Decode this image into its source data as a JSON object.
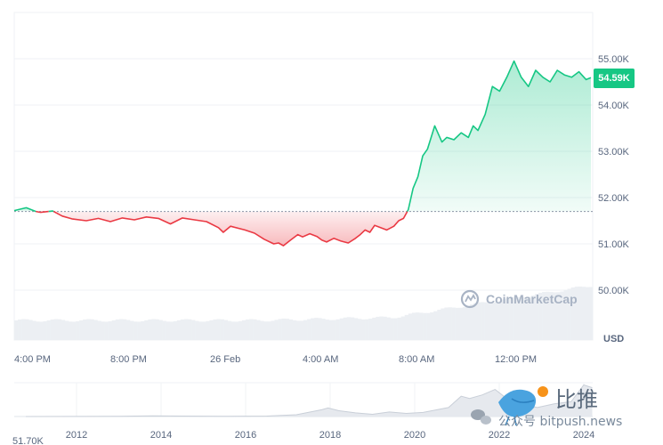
{
  "chart_data": [
    {
      "type": "area",
      "baseline_price": 51700,
      "current_price_label": "54.59K",
      "currency_label": "USD",
      "ylim": [
        49500,
        55600
      ],
      "y_ticks": [
        {
          "value": 55000,
          "label": "55.00K"
        },
        {
          "value": 54000,
          "label": "54.00K"
        },
        {
          "value": 53000,
          "label": "53.00K"
        },
        {
          "value": 52000,
          "label": "52.00K"
        },
        {
          "value": 51000,
          "label": "51.00K"
        },
        {
          "value": 50000,
          "label": "50.00K"
        }
      ],
      "x_ticks": [
        "4:00 PM",
        "8:00 PM",
        "26 Feb",
        "4:00 AM",
        "8:00 AM",
        "12:00 PM"
      ],
      "x_range_hours": [
        0,
        24
      ],
      "series": [
        {
          "x": [
            0,
            0.5,
            0.9,
            1.1,
            1.6,
            2.0,
            2.4,
            3.0,
            3.5,
            4.0,
            4.5,
            5.0,
            5.5,
            6.0,
            6.5,
            7.0,
            7.5,
            8.0,
            8.5,
            8.7,
            9.0,
            9.6,
            10.0,
            10.4,
            10.8,
            11.0,
            11.2,
            11.5,
            11.8,
            12.0,
            12.3,
            12.6,
            12.8,
            13.0,
            13.3,
            13.6,
            13.9,
            14.2,
            14.4,
            14.6,
            14.8,
            15.0,
            15.5,
            15.8,
            16.0,
            16.2,
            16.4,
            16.6,
            16.8,
            17.0,
            17.2,
            17.5,
            17.8,
            18.0,
            18.3,
            18.6,
            18.9,
            19.1,
            19.3,
            19.6,
            19.9,
            20.2,
            20.5,
            20.8,
            21.1,
            21.4,
            21.7,
            22.0,
            22.3,
            22.6,
            22.9,
            23.2,
            23.5,
            23.8,
            24.0
          ],
          "y": [
            51720,
            51780,
            51700,
            51680,
            51710,
            51600,
            51540,
            51500,
            51550,
            51480,
            51560,
            51520,
            51580,
            51550,
            51430,
            51560,
            51520,
            51480,
            51350,
            51250,
            51380,
            51300,
            51230,
            51100,
            51000,
            51020,
            50960,
            51080,
            51200,
            51150,
            51220,
            51160,
            51080,
            51040,
            51120,
            51060,
            51020,
            51120,
            51200,
            51300,
            51250,
            51400,
            51300,
            51380,
            51500,
            51550,
            51740,
            52200,
            52450,
            52900,
            53050,
            53550,
            53200,
            53300,
            53250,
            53400,
            53300,
            53550,
            53450,
            53800,
            54400,
            54300,
            54600,
            54950,
            54600,
            54400,
            54750,
            54600,
            54500,
            54750,
            54650,
            54600,
            54720,
            54550,
            54590
          ]
        }
      ]
    },
    {
      "type": "area",
      "x_ticks": [
        "2012",
        "2014",
        "2016",
        "2018",
        "2020",
        "2022",
        "2024"
      ],
      "start_price_label": "51.70K",
      "x": [
        2010.8,
        2012.0,
        2013.0,
        2013.8,
        2014.5,
        2015.5,
        2016.5,
        2017.2,
        2017.8,
        2017.95,
        2018.2,
        2018.6,
        2019.0,
        2019.4,
        2019.8,
        2020.2,
        2020.8,
        2021.1,
        2021.3,
        2021.6,
        2021.9,
        2022.2,
        2022.5,
        2022.9,
        2023.3,
        2023.7,
        2024.0,
        2024.2
      ],
      "y": [
        0,
        0.1,
        0.5,
        1.5,
        1,
        0.4,
        1,
        4,
        15,
        19,
        13,
        8,
        5,
        10,
        7,
        9,
        20,
        45,
        40,
        48,
        60,
        38,
        28,
        20,
        28,
        33,
        70,
        64
      ]
    }
  ],
  "watermark": {
    "brand": "CoinMarketCap",
    "wechat_title": "比推",
    "wechat_subtitle": "公众号 bitpush.news"
  }
}
